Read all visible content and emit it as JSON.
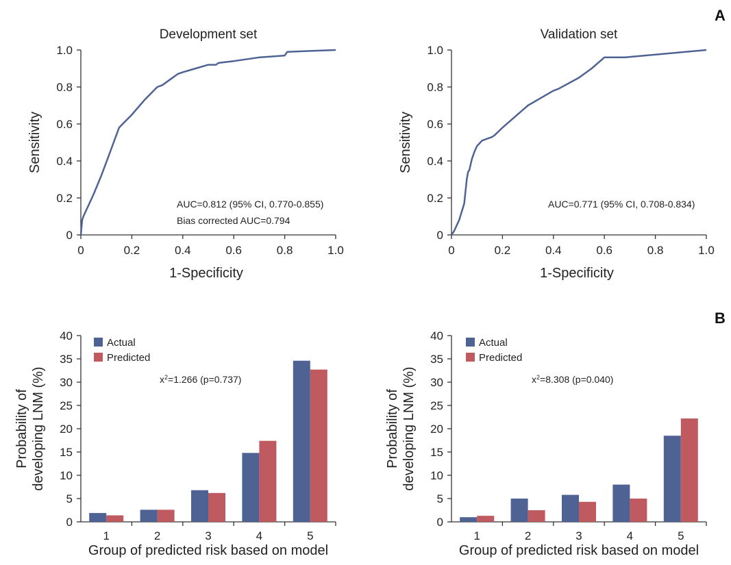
{
  "panel_letters": {
    "a": "A",
    "b": "B"
  },
  "colors": {
    "line": "#4e6294",
    "actual": "#4e6294",
    "predicted": "#c05a61",
    "axis": "#333333"
  },
  "chart_data": [
    {
      "type": "line",
      "title": "Development set",
      "xlabel": "1-Specificity",
      "ylabel": "Sensitivity",
      "xlim": [
        0,
        1
      ],
      "ylim": [
        0,
        1
      ],
      "xticks": [
        "0",
        "0.2",
        "0.4",
        "0.6",
        "0.8",
        "1.0"
      ],
      "yticks": [
        "0",
        "0.2",
        "0.4",
        "0.6",
        "0.8",
        "1.0"
      ],
      "annotations": [
        "AUC=0.812 (95% CI, 0.770-0.855)",
        "Bias corrected AUC=0.794"
      ],
      "x": [
        0,
        0.005,
        0.01,
        0.03,
        0.05,
        0.08,
        0.11,
        0.15,
        0.2,
        0.25,
        0.3,
        0.32,
        0.35,
        0.38,
        0.4,
        0.45,
        0.5,
        0.53,
        0.54,
        0.6,
        0.7,
        0.8,
        0.81,
        0.9,
        1.0
      ],
      "y": [
        0,
        0.08,
        0.1,
        0.16,
        0.22,
        0.32,
        0.43,
        0.58,
        0.65,
        0.73,
        0.8,
        0.81,
        0.84,
        0.87,
        0.88,
        0.9,
        0.92,
        0.92,
        0.93,
        0.94,
        0.96,
        0.97,
        0.99,
        0.995,
        1.0
      ]
    },
    {
      "type": "line",
      "title": "Validation set",
      "xlabel": "1-Specificity",
      "ylabel": "Sensitivity",
      "xlim": [
        0,
        1
      ],
      "ylim": [
        0,
        1
      ],
      "xticks": [
        "0",
        "0.2",
        "0.4",
        "0.6",
        "0.8",
        "1.0"
      ],
      "yticks": [
        "0",
        "0.2",
        "0.4",
        "0.6",
        "0.8",
        "1.0"
      ],
      "annotations": [
        "AUC=0.771 (95% CI, 0.708-0.834)"
      ],
      "x": [
        0,
        0.01,
        0.03,
        0.05,
        0.06,
        0.065,
        0.07,
        0.08,
        0.09,
        0.1,
        0.12,
        0.14,
        0.16,
        0.17,
        0.2,
        0.25,
        0.3,
        0.35,
        0.4,
        0.42,
        0.5,
        0.55,
        0.6,
        0.68,
        0.8,
        1.0
      ],
      "y": [
        0,
        0.02,
        0.08,
        0.17,
        0.3,
        0.34,
        0.35,
        0.41,
        0.45,
        0.48,
        0.51,
        0.52,
        0.53,
        0.54,
        0.58,
        0.64,
        0.7,
        0.74,
        0.78,
        0.79,
        0.85,
        0.9,
        0.96,
        0.96,
        0.975,
        1.0
      ]
    },
    {
      "type": "bar",
      "xlabel": "Group of predicted risk based on model",
      "ylabel_lines": [
        "Probability of",
        "developing LNM (%)"
      ],
      "ylim": [
        0,
        40
      ],
      "yticks": [
        "0",
        "5",
        "10",
        "15",
        "20",
        "25",
        "30",
        "35",
        "40"
      ],
      "categories": [
        "1",
        "2",
        "3",
        "4",
        "5"
      ],
      "series": [
        {
          "name": "Actual",
          "values": [
            1.9,
            2.6,
            6.8,
            14.8,
            34.6
          ]
        },
        {
          "name": "Predicted",
          "values": [
            1.4,
            2.6,
            6.2,
            17.4,
            32.7
          ]
        }
      ],
      "annotation": {
        "prefix": "x",
        "sup": "2",
        "rest": "=1.266 (p=0.737)"
      },
      "legend": "top-left"
    },
    {
      "type": "bar",
      "xlabel": "Group of predicted risk based on model",
      "ylabel_lines": [
        "Probability of",
        "developing LNM (%)"
      ],
      "ylim": [
        0,
        40
      ],
      "yticks": [
        "0",
        "5",
        "10",
        "15",
        "20",
        "25",
        "30",
        "35",
        "40"
      ],
      "categories": [
        "1",
        "2",
        "3",
        "4",
        "5"
      ],
      "series": [
        {
          "name": "Actual",
          "values": [
            1.0,
            5.0,
            5.8,
            8.0,
            18.5
          ]
        },
        {
          "name": "Predicted",
          "values": [
            1.3,
            2.5,
            4.3,
            5.0,
            22.2
          ]
        }
      ],
      "annotation": {
        "prefix": "x",
        "sup": "2",
        "rest": "=8.308 (p=0.040)"
      },
      "legend": "top-left"
    }
  ]
}
